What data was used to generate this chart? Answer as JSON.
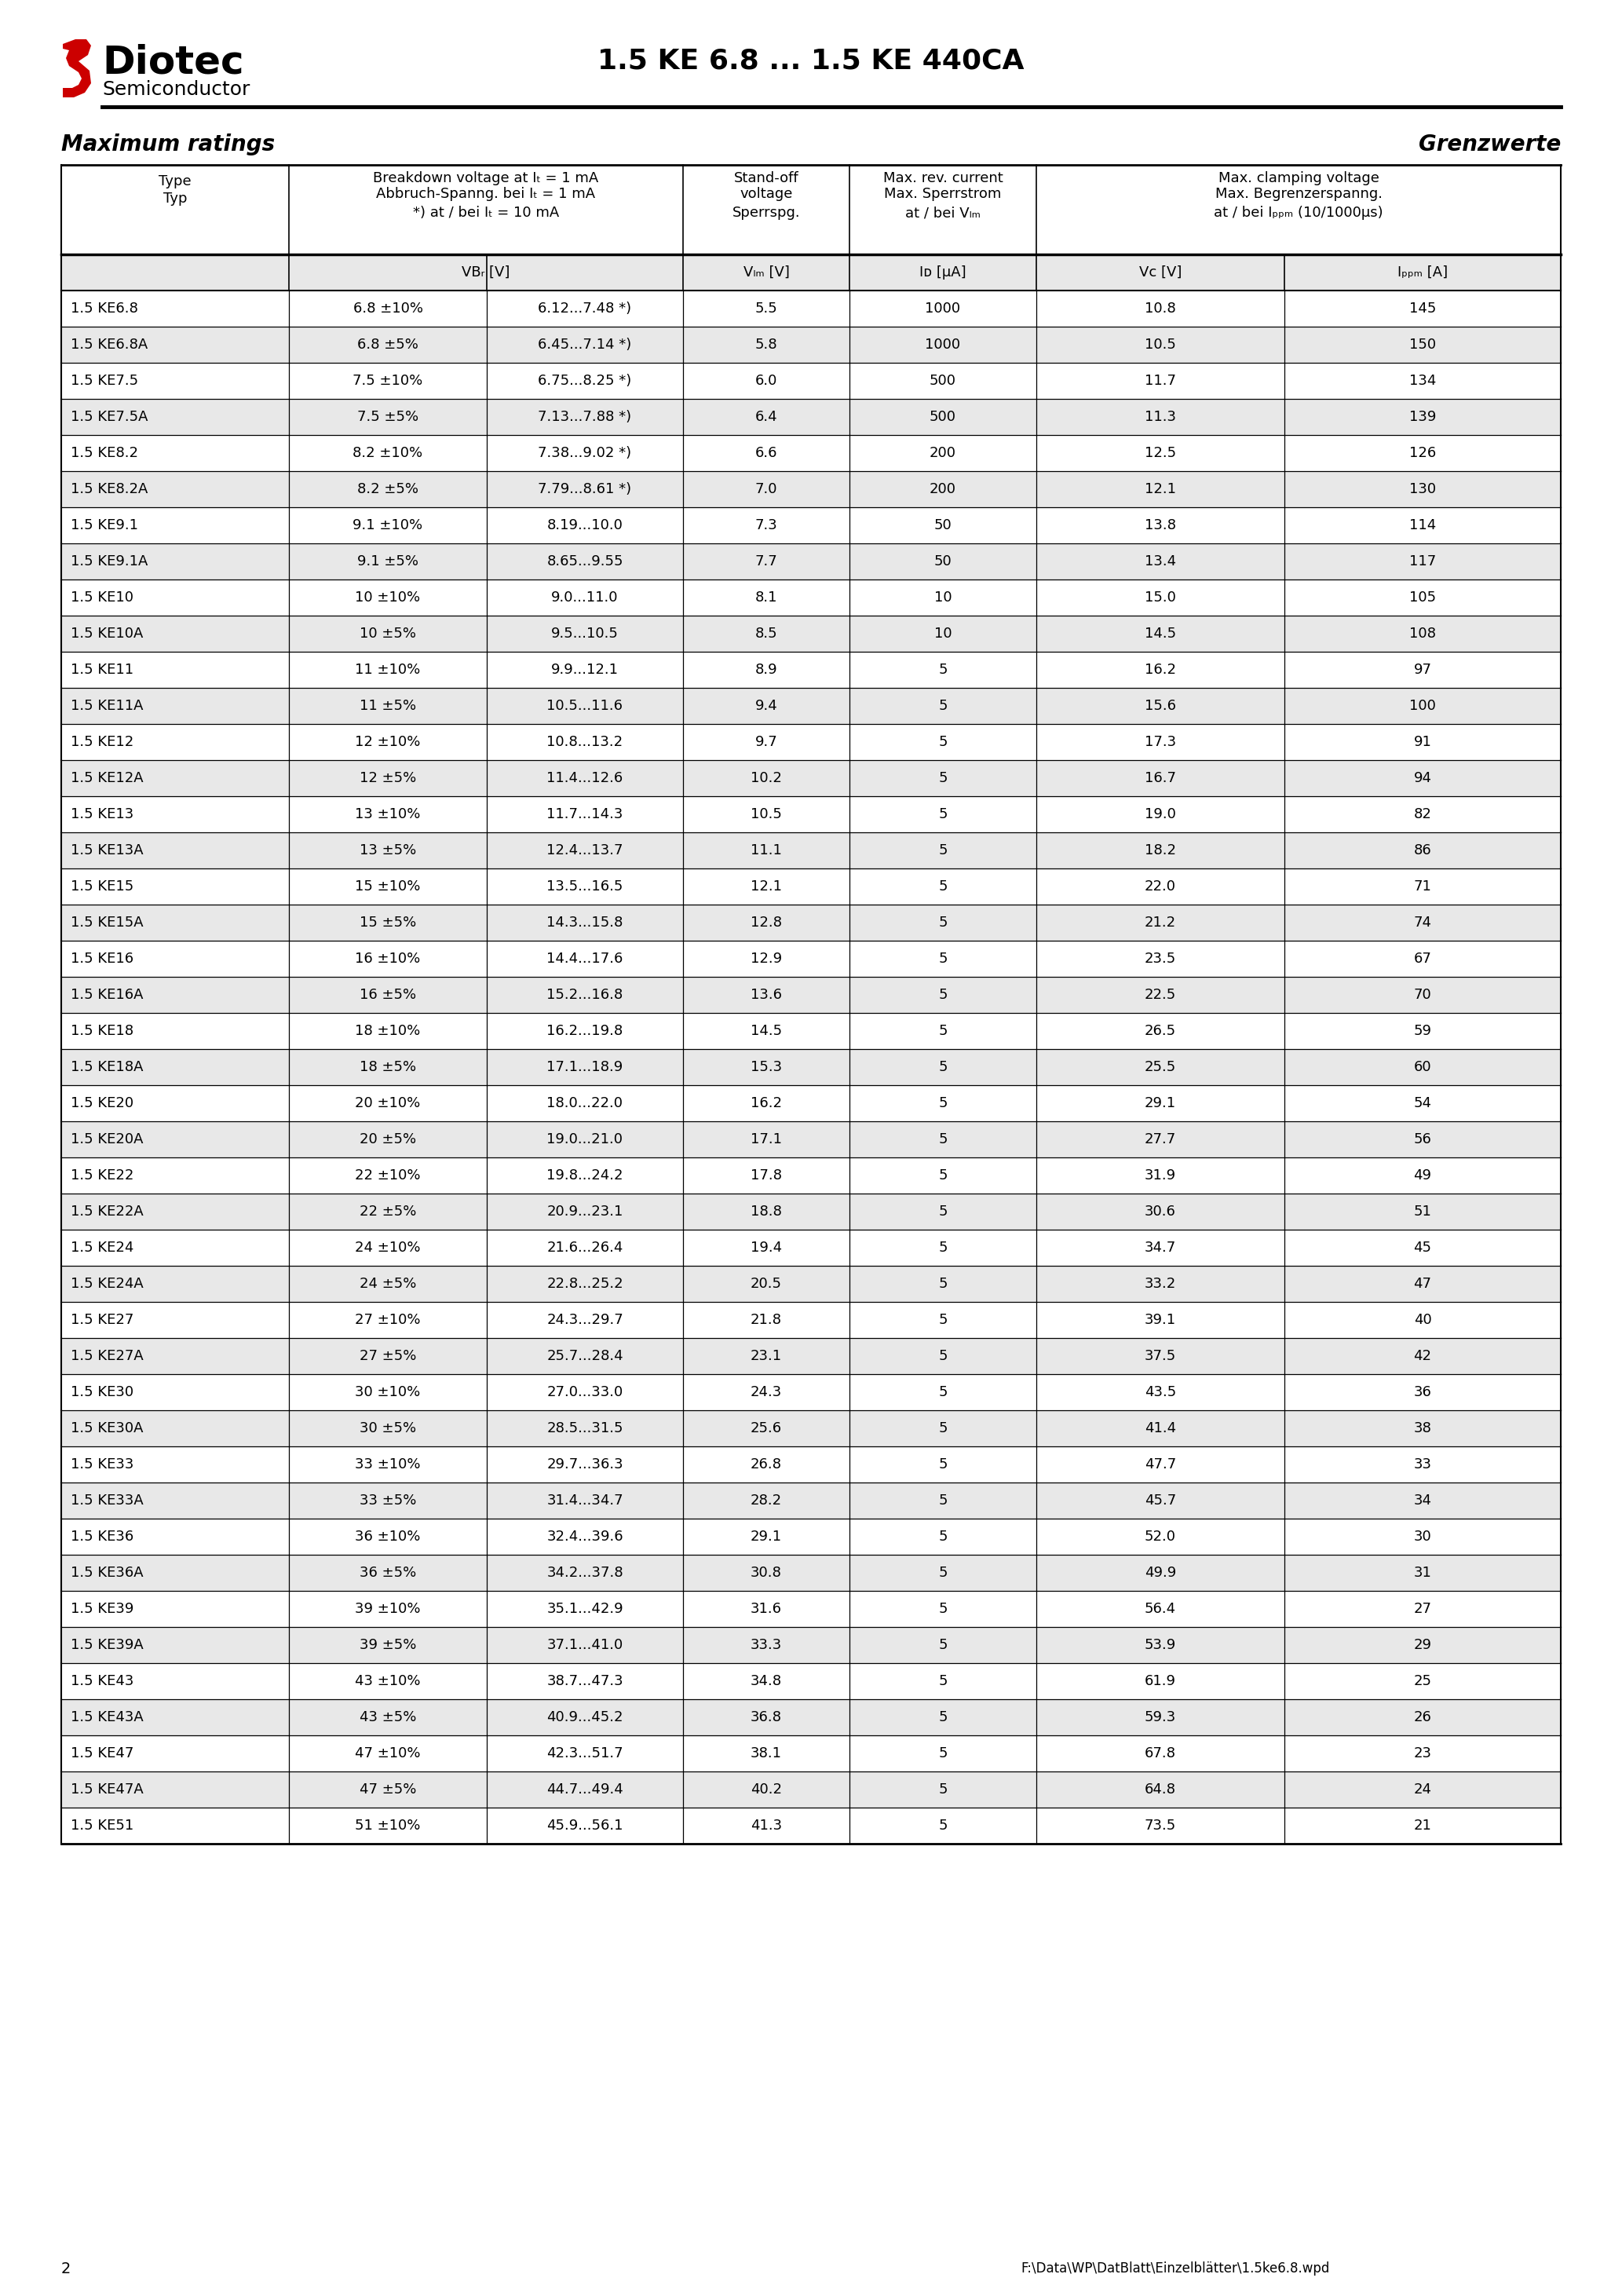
{
  "page_title": "1.5 KE 6.8 ... 1.5 KE 440CA",
  "section_title_left": "Maximum ratings",
  "section_title_right": "Grenzwerte",
  "page_number": "2",
  "footer_text": "F:\\Data\\WP\\DatBlatt\\Einzelblätter\\1.5ke6.8.wpd",
  "rows": [
    [
      "1.5 KE6.8",
      "6.8 ±10%",
      "6.12...7.48 *)",
      "5.5",
      "1000",
      "10.8",
      "145"
    ],
    [
      "1.5 KE6.8A",
      "6.8 ±5%",
      "6.45...7.14 *)",
      "5.8",
      "1000",
      "10.5",
      "150"
    ],
    [
      "1.5 KE7.5",
      "7.5 ±10%",
      "6.75...8.25 *)",
      "6.0",
      "500",
      "11.7",
      "134"
    ],
    [
      "1.5 KE7.5A",
      "7.5 ±5%",
      "7.13...7.88 *)",
      "6.4",
      "500",
      "11.3",
      "139"
    ],
    [
      "1.5 KE8.2",
      "8.2 ±10%",
      "7.38...9.02 *)",
      "6.6",
      "200",
      "12.5",
      "126"
    ],
    [
      "1.5 KE8.2A",
      "8.2 ±5%",
      "7.79...8.61 *)",
      "7.0",
      "200",
      "12.1",
      "130"
    ],
    [
      "1.5 KE9.1",
      "9.1 ±10%",
      "8.19...10.0",
      "7.3",
      "50",
      "13.8",
      "114"
    ],
    [
      "1.5 KE9.1A",
      "9.1 ±5%",
      "8.65...9.55",
      "7.7",
      "50",
      "13.4",
      "117"
    ],
    [
      "1.5 KE10",
      "10 ±10%",
      "9.0...11.0",
      "8.1",
      "10",
      "15.0",
      "105"
    ],
    [
      "1.5 KE10A",
      "10 ±5%",
      "9.5...10.5",
      "8.5",
      "10",
      "14.5",
      "108"
    ],
    [
      "1.5 KE11",
      "11 ±10%",
      "9.9...12.1",
      "8.9",
      "5",
      "16.2",
      "97"
    ],
    [
      "1.5 KE11A",
      "11 ±5%",
      "10.5...11.6",
      "9.4",
      "5",
      "15.6",
      "100"
    ],
    [
      "1.5 KE12",
      "12 ±10%",
      "10.8...13.2",
      "9.7",
      "5",
      "17.3",
      "91"
    ],
    [
      "1.5 KE12A",
      "12 ±5%",
      "11.4...12.6",
      "10.2",
      "5",
      "16.7",
      "94"
    ],
    [
      "1.5 KE13",
      "13 ±10%",
      "11.7...14.3",
      "10.5",
      "5",
      "19.0",
      "82"
    ],
    [
      "1.5 KE13A",
      "13 ±5%",
      "12.4...13.7",
      "11.1",
      "5",
      "18.2",
      "86"
    ],
    [
      "1.5 KE15",
      "15 ±10%",
      "13.5...16.5",
      "12.1",
      "5",
      "22.0",
      "71"
    ],
    [
      "1.5 KE15A",
      "15 ±5%",
      "14.3...15.8",
      "12.8",
      "5",
      "21.2",
      "74"
    ],
    [
      "1.5 KE16",
      "16 ±10%",
      "14.4...17.6",
      "12.9",
      "5",
      "23.5",
      "67"
    ],
    [
      "1.5 KE16A",
      "16 ±5%",
      "15.2...16.8",
      "13.6",
      "5",
      "22.5",
      "70"
    ],
    [
      "1.5 KE18",
      "18 ±10%",
      "16.2...19.8",
      "14.5",
      "5",
      "26.5",
      "59"
    ],
    [
      "1.5 KE18A",
      "18 ±5%",
      "17.1...18.9",
      "15.3",
      "5",
      "25.5",
      "60"
    ],
    [
      "1.5 KE20",
      "20 ±10%",
      "18.0...22.0",
      "16.2",
      "5",
      "29.1",
      "54"
    ],
    [
      "1.5 KE20A",
      "20 ±5%",
      "19.0...21.0",
      "17.1",
      "5",
      "27.7",
      "56"
    ],
    [
      "1.5 KE22",
      "22 ±10%",
      "19.8...24.2",
      "17.8",
      "5",
      "31.9",
      "49"
    ],
    [
      "1.5 KE22A",
      "22 ±5%",
      "20.9...23.1",
      "18.8",
      "5",
      "30.6",
      "51"
    ],
    [
      "1.5 KE24",
      "24 ±10%",
      "21.6...26.4",
      "19.4",
      "5",
      "34.7",
      "45"
    ],
    [
      "1.5 KE24A",
      "24 ±5%",
      "22.8...25.2",
      "20.5",
      "5",
      "33.2",
      "47"
    ],
    [
      "1.5 KE27",
      "27 ±10%",
      "24.3...29.7",
      "21.8",
      "5",
      "39.1",
      "40"
    ],
    [
      "1.5 KE27A",
      "27 ±5%",
      "25.7...28.4",
      "23.1",
      "5",
      "37.5",
      "42"
    ],
    [
      "1.5 KE30",
      "30 ±10%",
      "27.0...33.0",
      "24.3",
      "5",
      "43.5",
      "36"
    ],
    [
      "1.5 KE30A",
      "30 ±5%",
      "28.5...31.5",
      "25.6",
      "5",
      "41.4",
      "38"
    ],
    [
      "1.5 KE33",
      "33 ±10%",
      "29.7...36.3",
      "26.8",
      "5",
      "47.7",
      "33"
    ],
    [
      "1.5 KE33A",
      "33 ±5%",
      "31.4...34.7",
      "28.2",
      "5",
      "45.7",
      "34"
    ],
    [
      "1.5 KE36",
      "36 ±10%",
      "32.4...39.6",
      "29.1",
      "5",
      "52.0",
      "30"
    ],
    [
      "1.5 KE36A",
      "36 ±5%",
      "34.2...37.8",
      "30.8",
      "5",
      "49.9",
      "31"
    ],
    [
      "1.5 KE39",
      "39 ±10%",
      "35.1...42.9",
      "31.6",
      "5",
      "56.4",
      "27"
    ],
    [
      "1.5 KE39A",
      "39 ±5%",
      "37.1...41.0",
      "33.3",
      "5",
      "53.9",
      "29"
    ],
    [
      "1.5 KE43",
      "43 ±10%",
      "38.7...47.3",
      "34.8",
      "5",
      "61.9",
      "25"
    ],
    [
      "1.5 KE43A",
      "43 ±5%",
      "40.9...45.2",
      "36.8",
      "5",
      "59.3",
      "26"
    ],
    [
      "1.5 KE47",
      "47 ±10%",
      "42.3...51.7",
      "38.1",
      "5",
      "67.8",
      "23"
    ],
    [
      "1.5 KE47A",
      "47 ±5%",
      "44.7...49.4",
      "40.2",
      "5",
      "64.8",
      "24"
    ],
    [
      "1.5 KE51",
      "51 ±10%",
      "45.9...56.1",
      "41.3",
      "5",
      "73.5",
      "21"
    ]
  ],
  "bg_white": "#ffffff",
  "bg_gray": "#e8e8e8",
  "border_color": "#000000",
  "text_color": "#000000"
}
